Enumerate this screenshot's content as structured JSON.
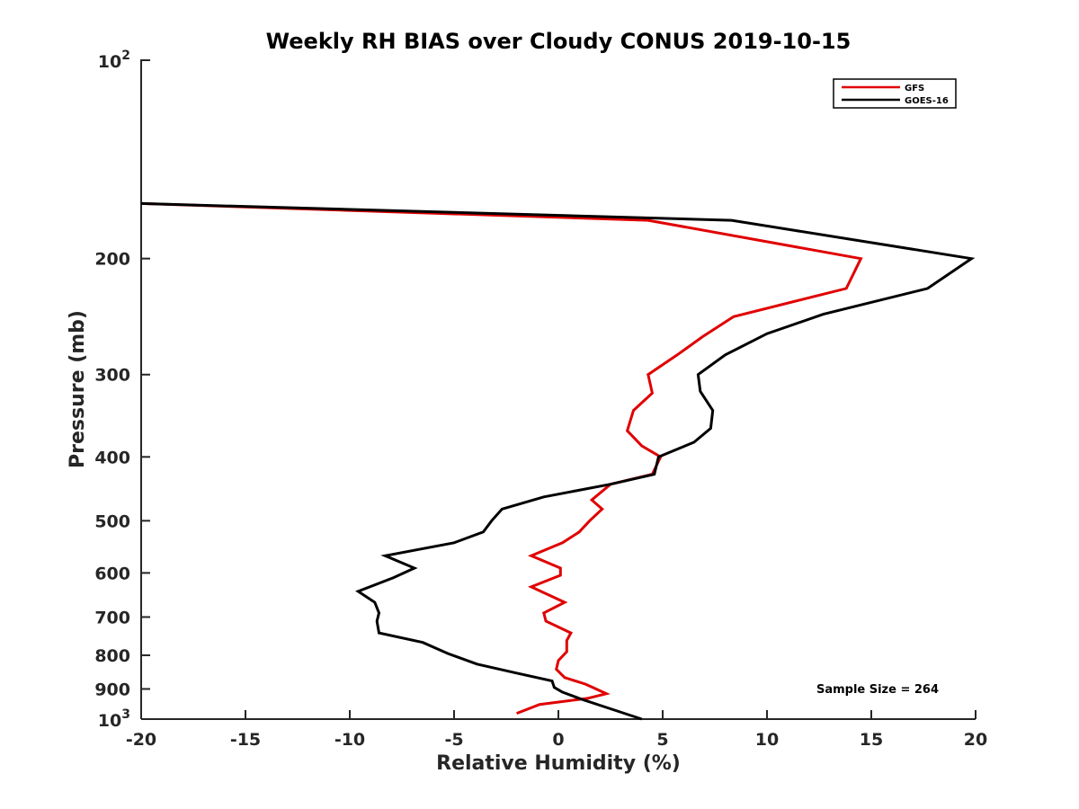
{
  "chart_data": {
    "type": "line",
    "title": "Weekly RH BIAS over Cloudy CONUS 2019-10-15",
    "xlabel": "Relative Humidity (%)",
    "ylabel": "Pressure (mb)",
    "xlim": [
      -20,
      20
    ],
    "ylim": [
      1000,
      100
    ],
    "y_scale": "log",
    "y_reversed": true,
    "grid": false,
    "x_ticks": [
      -20,
      -15,
      -10,
      -5,
      0,
      5,
      10,
      15,
      20
    ],
    "x_tick_labels": [
      "-20",
      "-15",
      "-10",
      "-5",
      "0",
      "5",
      "10",
      "15",
      "20"
    ],
    "y_ticks": [
      200,
      300,
      400,
      500,
      600,
      700,
      800,
      900
    ],
    "y_tick_labels": [
      "200",
      "300",
      "400",
      "500",
      "600",
      "700",
      "800",
      "900"
    ],
    "y_decade_ticks": [
      {
        "value": 100,
        "base": "10",
        "exp": "2"
      },
      {
        "value": 1000,
        "base": "10",
        "exp": "3"
      }
    ],
    "legend_position": "top-right",
    "annotation": "Sample Size = 264",
    "series": [
      {
        "name": "GFS",
        "color": "#e00000",
        "x": [
          -20,
          4.3,
          14.5,
          13.8,
          8.4,
          6.9,
          5.7,
          4.3,
          4.5,
          3.6,
          3.3,
          4.0,
          4.9,
          4.5,
          2.5,
          1.6,
          2.1,
          1.5,
          1.0,
          0.2,
          -1.3,
          0.1,
          0.1,
          -1.3,
          0.3,
          -0.7,
          -0.6,
          0.6,
          0.4,
          0.4,
          0.0,
          -0.1,
          0.3,
          1.3,
          2.3,
          1.4,
          -0.9,
          -2.0
        ],
        "y": [
          165,
          175,
          200,
          222,
          245,
          263,
          280,
          300,
          320,
          340,
          365,
          385,
          400,
          425,
          440,
          465,
          480,
          500,
          520,
          540,
          565,
          590,
          605,
          630,
          665,
          690,
          710,
          740,
          760,
          790,
          815,
          840,
          865,
          885,
          915,
          930,
          950,
          980
        ]
      },
      {
        "name": "GOES-16",
        "color": "#000000",
        "x": [
          -20,
          8.3,
          19.8,
          17.7,
          12.7,
          10.0,
          8.0,
          6.7,
          6.8,
          7.4,
          7.3,
          6.5,
          4.8,
          4.6,
          2.5,
          -0.7,
          -2.7,
          -3.2,
          -3.6,
          -5.0,
          -8.3,
          -6.9,
          -7.9,
          -9.6,
          -8.8,
          -8.6,
          -8.7,
          -8.6,
          -6.5,
          -5.3,
          -3.9,
          -2.1,
          -0.3,
          -0.2,
          0.2,
          1.2,
          2.3,
          4.0
        ],
        "y": [
          165,
          175,
          200,
          222,
          243,
          260,
          280,
          300,
          318,
          340,
          362,
          380,
          400,
          425,
          440,
          460,
          480,
          500,
          520,
          540,
          565,
          590,
          610,
          640,
          665,
          690,
          710,
          740,
          765,
          795,
          825,
          850,
          875,
          895,
          910,
          935,
          960,
          1000
        ]
      }
    ]
  }
}
